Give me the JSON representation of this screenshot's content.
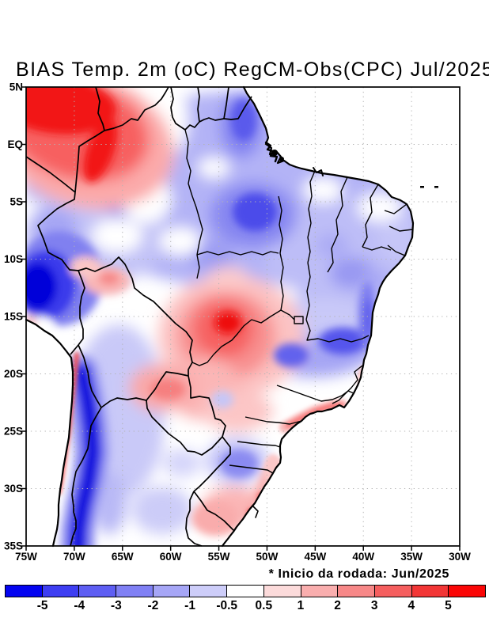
{
  "title": "BIAS Temp. 2m (oC) RegCM-Obs(CPC) Jul/2025",
  "footnote": "* Inicio da rodada: Jun/2025",
  "axes": {
    "lat_labels": [
      "5N",
      "EQ",
      "5S",
      "10S",
      "15S",
      "20S",
      "25S",
      "30S",
      "35S"
    ],
    "lon_labels": [
      "75W",
      "70W",
      "65W",
      "60W",
      "55W",
      "50W",
      "45W",
      "40W",
      "35W",
      "30W"
    ]
  },
  "colorbar": {
    "tick_labels": [
      "-5",
      "-4",
      "-3",
      "-2",
      "-1",
      "-0.5",
      "0.5",
      "1",
      "2",
      "3",
      "4",
      "5"
    ],
    "segment_colors": [
      "#0404f0",
      "#3e3ef2",
      "#5e5ef3",
      "#8080f4",
      "#a6a6f6",
      "#cdcdf9",
      "#ffffff",
      "#fcdbdb",
      "#f9aeae",
      "#f78888",
      "#f55f5f",
      "#f23636",
      "#fa0606"
    ]
  },
  "chart_data": {
    "type": "heatmap",
    "subtype": "filled_contour_map",
    "title": "BIAS Temp. 2m (oC) RegCM-Obs(CPC) Jul/2025",
    "variable": "2 m air temperature bias (RegCM model minus CPC observations)",
    "units": "oC",
    "model": "RegCM",
    "observations": "CPC",
    "valid_month": "Jul/2025",
    "run_start_note": "* Inicio da rodada: Jun/2025",
    "lon_range": [
      "75W",
      "30W"
    ],
    "lat_range": [
      "35S",
      "5N"
    ],
    "grid_interval_deg": 5,
    "grid": "dotted graticule every 5 degrees",
    "legend_position": "horizontal colorbar at bottom",
    "contour_levels": [
      -5,
      -4,
      -3,
      -2,
      -1,
      -0.5,
      0.5,
      1,
      2,
      3,
      4,
      5
    ],
    "ocean": "masked white (no data)",
    "anomaly_centers": [
      {
        "area": "NW corner - S Colombia / NW Amazon (~72W, 2N)",
        "bias_oC": "+3 to > +5"
      },
      {
        "area": "Warm tongue along Colombia-Peru border (~66W, 2S)",
        "bias_oC": "+2 to +5"
      },
      {
        "area": "Guyana / Roraima (~59W, 2N)",
        "bias_oC": "-1 to -3"
      },
      {
        "area": "Lower Amazon near river mouth (~52W, 1S)",
        "bias_oC": "-2 to -4"
      },
      {
        "area": "Most of Amazonia and Northeast Brazil",
        "bias_oC": "-0.5 to -2"
      },
      {
        "area": "Peru Andes at west edge (~74W, 12-16S)",
        "bias_oC": "-4 to < -5"
      },
      {
        "area": "Andes Chile-Argentina strip (~69W, 20S-35S)",
        "bias_oC": "-3 to < -5"
      },
      {
        "area": "Chilean coastal strip (~70.5W, 18S-30S)",
        "bias_oC": "+1 to +3"
      },
      {
        "area": "Central Brazil core (~55W, 15S)",
        "bias_oC": "+3 to > +5"
      },
      {
        "area": "Bolivia lowlands (~61W, 18S)",
        "bias_oC": "+1 to +2"
      },
      {
        "area": "Minas Gerais / west Bahia (~44W, 16-18S)",
        "bias_oC": "-1 to -3"
      },
      {
        "area": "Bahia coastal strip (~39.5W, 13-17S)",
        "bias_oC": "-1 to -2"
      },
      {
        "area": "Rio de Janeiro coast (~43W, 22.5S)",
        "bias_oC": "+1 to +2"
      },
      {
        "area": "Santa Catarina / N Rio Grande do Sul (~51W, 27.5S)",
        "bias_oC": "-1 to -2"
      },
      {
        "area": "Uruguay / S Rio Grande do Sul (~55W, 33S)",
        "bias_oC": "+1 to +2"
      }
    ]
  }
}
